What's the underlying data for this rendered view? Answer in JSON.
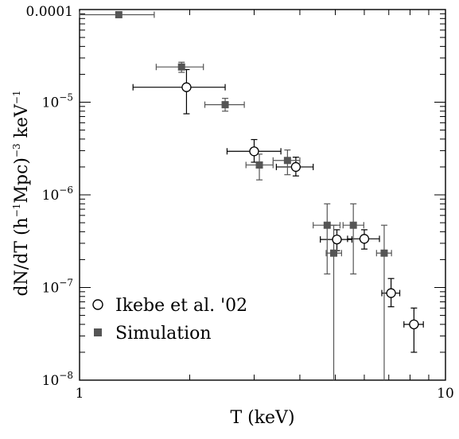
{
  "chart_data": {
    "type": "scatter",
    "xlabel": "T (keV)",
    "ylabel_parts": {
      "pre": "dN/dT (h",
      "exp1": "−1",
      "mid": "Mpc)",
      "exp2": "−3",
      "post": " keV",
      "exp3": "−1"
    },
    "x_scale": "log",
    "y_scale": "log",
    "xlim": [
      1,
      10
    ],
    "ylim": [
      1e-08,
      0.0001
    ],
    "x_ticks": [
      {
        "value": 1,
        "label": "1"
      },
      {
        "value": 10,
        "label": "10"
      }
    ],
    "y_ticks": [
      {
        "value": 0.0001,
        "base": "0.0001",
        "exp": ""
      },
      {
        "value": 1e-05,
        "base": "10",
        "exp": "−5"
      },
      {
        "value": 1e-06,
        "base": "10",
        "exp": "−6"
      },
      {
        "value": 1e-07,
        "base": "10",
        "exp": "−7"
      },
      {
        "value": 1e-08,
        "base": "10",
        "exp": "−8"
      }
    ],
    "legend_position": "bottom-left",
    "series": [
      {
        "name": "Ikebe et al. '02",
        "marker": "open-circle",
        "color": "#000000",
        "points": [
          {
            "x": 1.96,
            "y": 1.45e-05,
            "xlo": 1.4,
            "xhi": 2.5,
            "ylo": 7.5e-06,
            "yhi": 2.25e-05
          },
          {
            "x": 3.0,
            "y": 2.95e-06,
            "xlo": 2.53,
            "xhi": 3.55,
            "ylo": 2.25e-06,
            "yhi": 3.95e-06
          },
          {
            "x": 3.9,
            "y": 2e-06,
            "xlo": 3.45,
            "xhi": 4.35,
            "ylo": 1.6e-06,
            "yhi": 2.55e-06
          },
          {
            "x": 5.05,
            "y": 3.3e-07,
            "xlo": 4.55,
            "xhi": 5.55,
            "ylo": 2.5e-07,
            "yhi": 4.2e-07
          },
          {
            "x": 6.0,
            "y": 3.35e-07,
            "xlo": 5.4,
            "xhi": 6.6,
            "ylo": 2.6e-07,
            "yhi": 4.2e-07
          },
          {
            "x": 7.1,
            "y": 8.7e-08,
            "xlo": 6.7,
            "xhi": 7.5,
            "ylo": 6.2e-08,
            "yhi": 1.25e-07
          },
          {
            "x": 8.2,
            "y": 4e-08,
            "xlo": 7.7,
            "xhi": 8.7,
            "ylo": 2e-08,
            "yhi": 6e-08
          }
        ]
      },
      {
        "name": "Simulation",
        "marker": "filled-square",
        "color": "#555555",
        "points": [
          {
            "x": 1.28,
            "y": 8.8e-05,
            "xlo": 1.0,
            "xhi": 1.6,
            "ylo": 8.2e-05,
            "yhi": 9.4e-05
          },
          {
            "x": 1.9,
            "y": 2.4e-05,
            "xlo": 1.62,
            "xhi": 2.18,
            "ylo": 2.1e-05,
            "yhi": 2.7e-05
          },
          {
            "x": 2.5,
            "y": 9.4e-06,
            "xlo": 2.2,
            "xhi": 2.82,
            "ylo": 8e-06,
            "yhi": 1.1e-05
          },
          {
            "x": 3.1,
            "y": 2.1e-06,
            "xlo": 2.85,
            "xhi": 3.38,
            "ylo": 1.45e-06,
            "yhi": 2.75e-06
          },
          {
            "x": 3.7,
            "y": 2.35e-06,
            "xlo": 3.38,
            "xhi": 4.0,
            "ylo": 1.65e-06,
            "yhi": 3.05e-06
          },
          {
            "x": 4.75,
            "y": 4.7e-07,
            "xlo": 4.35,
            "xhi": 5.15,
            "ylo": 1.4e-07,
            "yhi": 8e-07
          },
          {
            "x": 4.95,
            "y": 2.35e-07,
            "xlo": 4.72,
            "xhi": 5.2,
            "ylo": 1e-08,
            "yhi": 4.7e-07
          },
          {
            "x": 5.6,
            "y": 4.7e-07,
            "xlo": 5.25,
            "xhi": 5.98,
            "ylo": 1.4e-07,
            "yhi": 8e-07
          },
          {
            "x": 6.8,
            "y": 2.35e-07,
            "xlo": 6.48,
            "xhi": 7.12,
            "ylo": 1e-08,
            "yhi": 4.7e-07
          }
        ]
      }
    ]
  }
}
